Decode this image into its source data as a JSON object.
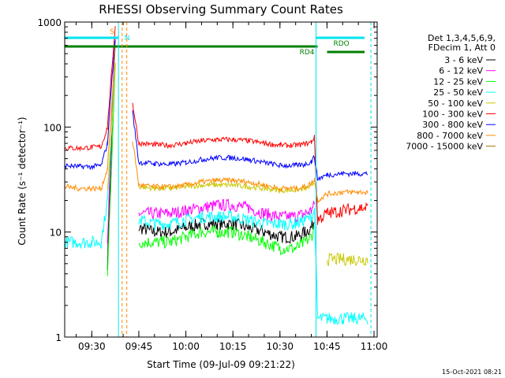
{
  "chart_data": {
    "type": "line",
    "title": "RHESSI Observing Summary Count Rates",
    "xlabel": "Start Time (09-Jul-09 09:21:22)",
    "ylabel": "Count Rate (s⁻¹ detector⁻¹)",
    "y_scale": "log",
    "ylim": [
      1,
      1000
    ],
    "xlim": [
      "09:21:22",
      "11:01:00"
    ],
    "x_ticks": [
      "09:30",
      "09:45",
      "10:00",
      "10:15",
      "10:30",
      "10:45",
      "11:00"
    ],
    "y_ticks": [
      "1",
      "10",
      "100",
      "1000"
    ],
    "legend_header": [
      "Det 1,3,4,5,6,9,",
      "FDecim 1, Att 0"
    ],
    "legend_position": "right",
    "grid": false,
    "timestamp": "15-Oct-2021 08:21",
    "annotations": {
      "flags": [
        {
          "label": "S",
          "color": "#ff8c00"
        },
        {
          "label": "N",
          "color": "#00e5ee"
        },
        {
          "label": "RDO",
          "color": "#008000"
        },
        {
          "label": "RD4",
          "color": "#008000"
        }
      ],
      "night_boundaries": [
        "09:38:00",
        "10:41:30"
      ],
      "saa_boundaries": [
        "09:39:40",
        "09:41:10"
      ],
      "data_end": "10:59:00"
    },
    "x_times": [
      "09:21:30",
      "09:26:00",
      "09:30:00",
      "09:33:00",
      "09:35:00",
      "09:36:00",
      "09:37:00",
      "09:37:30",
      "09:42:00",
      "09:43:00",
      "09:45:00",
      "09:50:00",
      "09:55:00",
      "10:00:00",
      "10:05:00",
      "10:10:00",
      "10:15:00",
      "10:20:00",
      "10:25:00",
      "10:30:00",
      "10:35:00",
      "10:38:00",
      "10:40:00",
      "10:41:00",
      "10:42:00",
      "10:45:00",
      "10:50:00",
      "10:55:00",
      "10:58:00"
    ],
    "series": [
      {
        "name": "3 - 6 keV",
        "color": "#000000",
        "values": [
          null,
          null,
          null,
          null,
          5,
          40,
          300,
          700,
          null,
          null,
          11,
          10,
          10,
          11,
          12,
          12,
          12,
          11,
          10,
          9,
          9,
          10,
          11,
          13,
          null,
          null,
          null,
          null,
          null
        ]
      },
      {
        "name": "6 - 12 keV",
        "color": "#ff00ff",
        "values": [
          null,
          null,
          null,
          null,
          9,
          55,
          350,
          700,
          null,
          null,
          15,
          15,
          15,
          16,
          17,
          18,
          18,
          17,
          15,
          14,
          14,
          15,
          16,
          18,
          null,
          null,
          null,
          null,
          null
        ]
      },
      {
        "name": "12 - 25 keV",
        "color": "#00ff00",
        "values": [
          null,
          null,
          null,
          null,
          4,
          25,
          150,
          400,
          null,
          null,
          8,
          8,
          8,
          9,
          10,
          10,
          10,
          9,
          8,
          7,
          7,
          8,
          9,
          11,
          null,
          null,
          null,
          null,
          null
        ]
      },
      {
        "name": "25 - 50 keV",
        "color": "#00ffff",
        "values": [
          8,
          8,
          8,
          8,
          20,
          60,
          250,
          600,
          null,
          null,
          13,
          12,
          12,
          13,
          14,
          14,
          14,
          13,
          12,
          12,
          12,
          13,
          14,
          16,
          1.5,
          1.5,
          1.5,
          1.5,
          1.5
        ]
      },
      {
        "name": "50 - 100 keV",
        "color": "#c8c800",
        "values": [
          null,
          null,
          null,
          null,
          25,
          70,
          200,
          400,
          null,
          null,
          27,
          26,
          26,
          27,
          28,
          28,
          28,
          27,
          26,
          25,
          25,
          26,
          27,
          30,
          null,
          5.5,
          5.5,
          5.5,
          5.5
        ]
      },
      {
        "name": "100 - 300 keV",
        "color": "#ff0000",
        "values": [
          63,
          63,
          64,
          65,
          100,
          250,
          600,
          900,
          null,
          170,
          70,
          68,
          67,
          70,
          74,
          76,
          76,
          74,
          70,
          67,
          67,
          69,
          72,
          80,
          13,
          15,
          16,
          17,
          17
        ]
      },
      {
        "name": "300 - 800 keV",
        "color": "#0000ff",
        "values": [
          43,
          42,
          42,
          43,
          70,
          200,
          450,
          700,
          null,
          140,
          46,
          45,
          44,
          46,
          49,
          51,
          51,
          49,
          46,
          43,
          43,
          44,
          47,
          52,
          32,
          35,
          36,
          36,
          36
        ]
      },
      {
        "name": "800 - 7000 keV",
        "color": "#ff8c00",
        "values": [
          27,
          26,
          26,
          26,
          40,
          120,
          300,
          600,
          null,
          75,
          28,
          27,
          27,
          28,
          30,
          31,
          31,
          30,
          28,
          26,
          26,
          27,
          29,
          32,
          20,
          23,
          24,
          24,
          24
        ]
      },
      {
        "name": "7000 - 15000 keV",
        "color": "#a07800",
        "values": [
          null,
          null,
          null,
          null,
          null,
          null,
          null,
          null,
          null,
          null,
          null,
          null,
          null,
          null,
          null,
          null,
          null,
          null,
          null,
          null,
          null,
          null,
          null,
          null,
          null,
          null,
          null,
          null,
          null
        ]
      }
    ]
  }
}
